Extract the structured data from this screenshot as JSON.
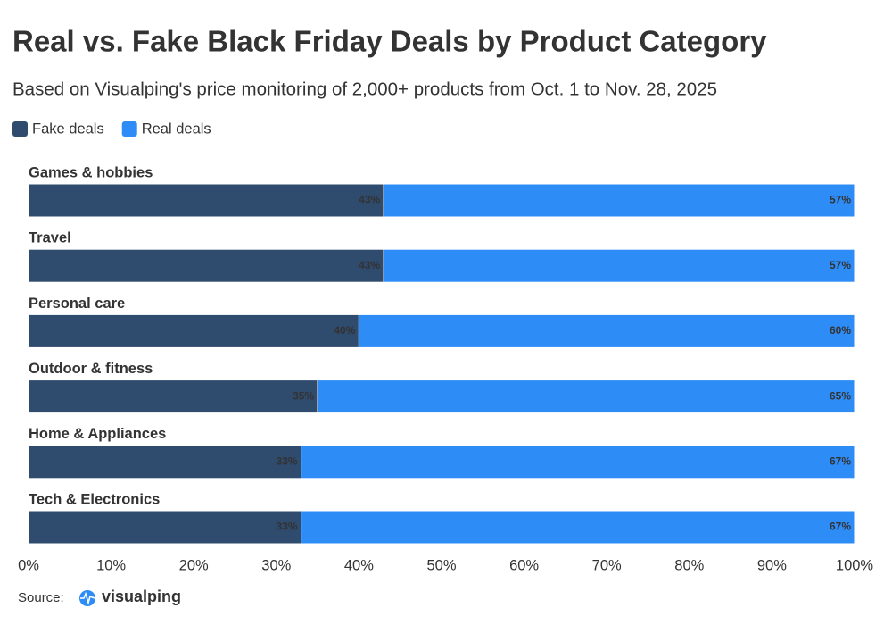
{
  "chart_data": {
    "type": "stacked_bar_horizontal",
    "title": "Real vs. Fake Black Friday Deals by Product Category",
    "subtitle": "Based on Visualping's price monitoring of 2,000+ products from Oct. 1 to Nov. 28, 2025",
    "categories": [
      "Games & hobbies",
      "Travel",
      "Personal care",
      "Outdoor & fitness",
      "Home & Appliances",
      "Tech & Electronics"
    ],
    "series": [
      {
        "name": "Fake deals",
        "color": "#2f4b6e",
        "values": [
          43,
          43,
          40,
          35,
          33,
          33
        ],
        "value_labels": [
          "43%",
          "43%",
          "40%",
          "35%",
          "33%",
          "33%"
        ]
      },
      {
        "name": "Real deals",
        "color": "#2e8cf7",
        "values": [
          57,
          57,
          60,
          65,
          67,
          67
        ],
        "value_labels": [
          "57%",
          "57%",
          "60%",
          "65%",
          "67%",
          "67%"
        ]
      }
    ],
    "xlim": [
      0,
      100
    ],
    "xticks": [
      {
        "value": 0,
        "label": "0%"
      },
      {
        "value": 10,
        "label": "10%"
      },
      {
        "value": 20,
        "label": "20%"
      },
      {
        "value": 30,
        "label": "30%"
      },
      {
        "value": 40,
        "label": "40%"
      },
      {
        "value": 50,
        "label": "50%"
      },
      {
        "value": 60,
        "label": "60%"
      },
      {
        "value": 70,
        "label": "70%"
      },
      {
        "value": 80,
        "label": "80%"
      },
      {
        "value": 90,
        "label": "90%"
      },
      {
        "value": 100,
        "label": "100%"
      }
    ],
    "source_label": "Source:",
    "source_name": "visualping"
  }
}
